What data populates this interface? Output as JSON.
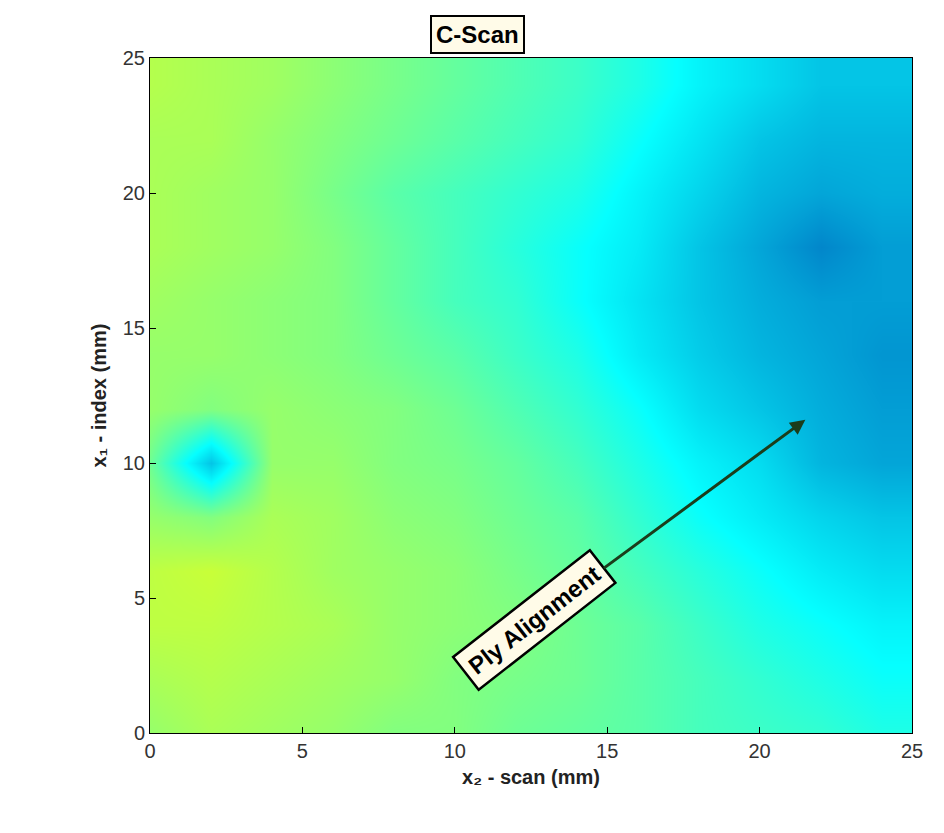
{
  "chart_data": {
    "type": "heatmap",
    "title": "C-Scan",
    "x_label": "x₂ - scan (mm)",
    "y_label": "x₁ - index (mm)",
    "annotations": [
      "Ply Alignment"
    ],
    "color": "jet",
    "x": [
      0,
      2,
      4,
      6,
      8,
      10,
      12,
      14,
      16,
      18,
      20,
      22,
      24
    ],
    "y": [
      0,
      2,
      4,
      6,
      8,
      10,
      12,
      14,
      16,
      18,
      20,
      22,
      24
    ],
    "z": [
      [
        0.52,
        0.54,
        0.53,
        0.52,
        0.5,
        0.5,
        0.48,
        0.47,
        0.46,
        0.44,
        0.43,
        0.42,
        0.4
      ],
      [
        0.54,
        0.55,
        0.54,
        0.53,
        0.52,
        0.5,
        0.49,
        0.48,
        0.46,
        0.44,
        0.42,
        0.4,
        0.38
      ],
      [
        0.56,
        0.56,
        0.55,
        0.54,
        0.52,
        0.51,
        0.5,
        0.48,
        0.46,
        0.43,
        0.4,
        0.38,
        0.36
      ],
      [
        0.56,
        0.57,
        0.55,
        0.53,
        0.52,
        0.51,
        0.49,
        0.47,
        0.44,
        0.41,
        0.38,
        0.35,
        0.33
      ],
      [
        0.52,
        0.5,
        0.54,
        0.53,
        0.51,
        0.5,
        0.48,
        0.46,
        0.42,
        0.38,
        0.35,
        0.32,
        0.3
      ],
      [
        0.48,
        0.3,
        0.52,
        0.52,
        0.5,
        0.49,
        0.47,
        0.44,
        0.4,
        0.36,
        0.33,
        0.28,
        0.26
      ],
      [
        0.52,
        0.5,
        0.52,
        0.51,
        0.5,
        0.48,
        0.45,
        0.42,
        0.38,
        0.33,
        0.3,
        0.27,
        0.25
      ],
      [
        0.52,
        0.52,
        0.51,
        0.5,
        0.48,
        0.46,
        0.43,
        0.4,
        0.35,
        0.31,
        0.28,
        0.26,
        0.24
      ],
      [
        0.53,
        0.52,
        0.51,
        0.5,
        0.47,
        0.44,
        0.42,
        0.38,
        0.34,
        0.3,
        0.27,
        0.25,
        0.25
      ],
      [
        0.54,
        0.53,
        0.52,
        0.5,
        0.47,
        0.44,
        0.41,
        0.38,
        0.35,
        0.3,
        0.26,
        0.22,
        0.25
      ],
      [
        0.54,
        0.53,
        0.52,
        0.49,
        0.46,
        0.44,
        0.42,
        0.4,
        0.36,
        0.32,
        0.28,
        0.26,
        0.27
      ],
      [
        0.54,
        0.54,
        0.52,
        0.5,
        0.48,
        0.46,
        0.44,
        0.42,
        0.38,
        0.34,
        0.3,
        0.28,
        0.28
      ],
      [
        0.55,
        0.54,
        0.53,
        0.51,
        0.49,
        0.47,
        0.45,
        0.43,
        0.4,
        0.36,
        0.33,
        0.3,
        0.3
      ]
    ],
    "zlim": [
      0,
      1
    ],
    "xlim": [
      0,
      25
    ],
    "ylim": [
      0,
      25
    ],
    "xticks": [
      0,
      5,
      10,
      15,
      20,
      25
    ],
    "yticks": [
      0,
      5,
      10,
      15,
      20,
      25
    ]
  }
}
